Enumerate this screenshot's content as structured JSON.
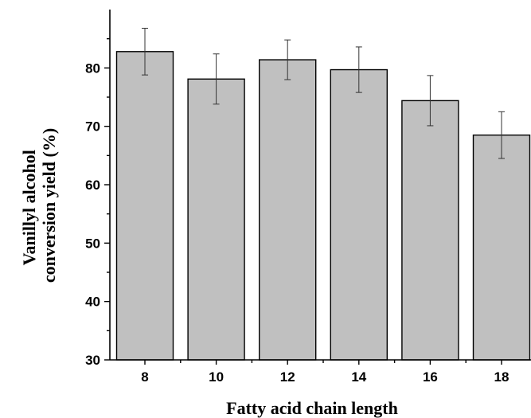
{
  "chart_data": {
    "type": "bar",
    "categories": [
      "8",
      "10",
      "12",
      "14",
      "16",
      "18"
    ],
    "values": [
      82.8,
      78.1,
      81.4,
      79.7,
      74.4,
      68.5
    ],
    "errors": [
      4.0,
      4.3,
      3.4,
      3.9,
      4.3,
      4.0
    ],
    "title": "",
    "xlabel": "Fatty acid chain length",
    "ylabel_lines": [
      "Vanillyl alcohol",
      "conversion yield (%)"
    ],
    "ylim": [
      30,
      90
    ],
    "yticks": [
      30,
      40,
      50,
      60,
      70,
      80
    ],
    "grid": false,
    "colors": {
      "bar_fill": "#c0c0c0",
      "bar_stroke": "#000000",
      "error_bar": "#333333"
    }
  }
}
